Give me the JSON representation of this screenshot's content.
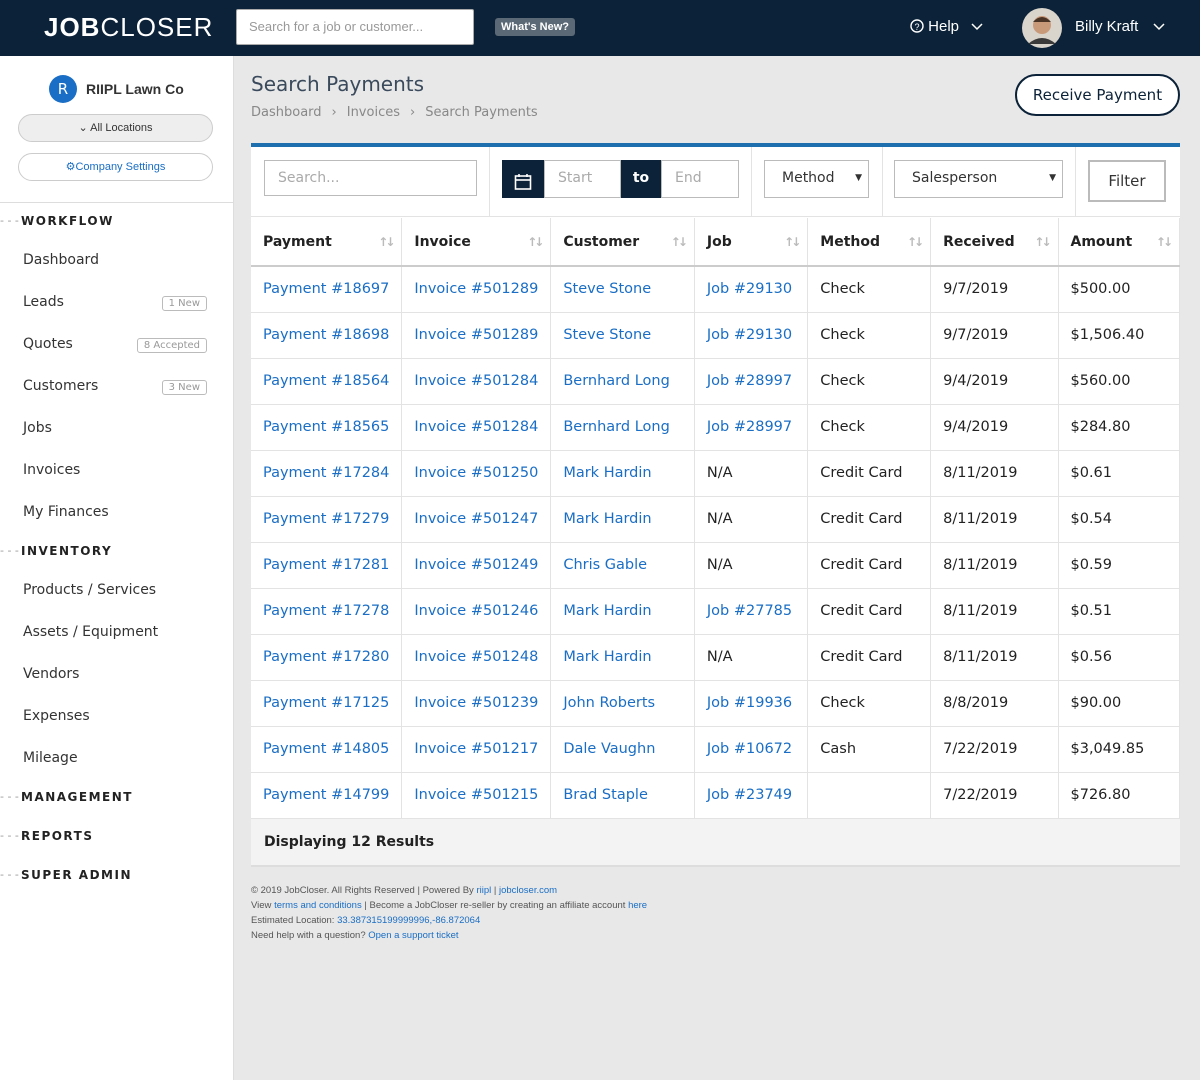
{
  "header": {
    "logo_bold": "JOB",
    "logo_light": "CLOSER",
    "search_placeholder": "Search for a job or customer...",
    "whats_new": "What's New?",
    "help": "Help",
    "user_name": "Billy Kraft"
  },
  "sidebar": {
    "company_initial": "R",
    "company_name": "RIIPL Lawn Co",
    "locations": "All Locations",
    "settings": "Company Settings",
    "sections": [
      {
        "title": "WORKFLOW",
        "items": [
          {
            "label": "Dashboard"
          },
          {
            "label": "Leads",
            "badge": "1 New"
          },
          {
            "label": "Quotes",
            "badge": "8 Accepted"
          },
          {
            "label": "Customers",
            "badge": "3 New"
          },
          {
            "label": "Jobs"
          },
          {
            "label": "Invoices"
          },
          {
            "label": "My Finances"
          }
        ]
      },
      {
        "title": "INVENTORY",
        "items": [
          {
            "label": "Products / Services"
          },
          {
            "label": "Assets / Equipment"
          },
          {
            "label": "Vendors"
          },
          {
            "label": "Expenses"
          },
          {
            "label": "Mileage"
          }
        ]
      },
      {
        "title": "MANAGEMENT",
        "items": []
      },
      {
        "title": "REPORTS",
        "items": []
      },
      {
        "title": "SUPER ADMIN",
        "items": []
      }
    ]
  },
  "page": {
    "title": "Search Payments",
    "breadcrumbs": [
      "Dashboard",
      "Invoices",
      "Search Payments"
    ],
    "receive_button": "Receive Payment"
  },
  "filters": {
    "search_placeholder": "Search...",
    "start": "Start",
    "to": "to",
    "end": "End",
    "method": "Method",
    "salesperson": "Salesperson",
    "filter_button": "Filter"
  },
  "table": {
    "columns": [
      {
        "label": "Payment",
        "link": true
      },
      {
        "label": "Invoice",
        "link": true
      },
      {
        "label": "Customer",
        "link": true
      },
      {
        "label": "Job",
        "link": true
      },
      {
        "label": "Method",
        "link": false
      },
      {
        "label": "Received",
        "link": false
      },
      {
        "label": "Amount",
        "link": false
      }
    ],
    "rows": [
      [
        "Payment #18697",
        "Invoice #501289",
        "Steve Stone",
        "Job #29130",
        "Check",
        "9/7/2019",
        "$500.00"
      ],
      [
        "Payment #18698",
        "Invoice #501289",
        "Steve Stone",
        "Job #29130",
        "Check",
        "9/7/2019",
        "$1,506.40"
      ],
      [
        "Payment #18564",
        "Invoice #501284",
        "Bernhard Long",
        "Job #28997",
        "Check",
        "9/4/2019",
        "$560.00"
      ],
      [
        "Payment #18565",
        "Invoice #501284",
        "Bernhard Long",
        "Job #28997",
        "Check",
        "9/4/2019",
        "$284.80"
      ],
      [
        "Payment #17284",
        "Invoice #501250",
        "Mark Hardin",
        {
          "text": "N/A",
          "link": false
        },
        "Credit Card",
        "8/11/2019",
        "$0.61"
      ],
      [
        "Payment #17279",
        "Invoice #501247",
        "Mark Hardin",
        {
          "text": "N/A",
          "link": false
        },
        "Credit Card",
        "8/11/2019",
        "$0.54"
      ],
      [
        "Payment #17281",
        "Invoice #501249",
        "Chris Gable",
        {
          "text": "N/A",
          "link": false
        },
        "Credit Card",
        "8/11/2019",
        "$0.59"
      ],
      [
        "Payment #17278",
        "Invoice #501246",
        "Mark Hardin",
        "Job #27785",
        "Credit Card",
        "8/11/2019",
        "$0.51"
      ],
      [
        "Payment #17280",
        "Invoice #501248",
        "Mark Hardin",
        {
          "text": "N/A",
          "link": false
        },
        "Credit Card",
        "8/11/2019",
        "$0.56"
      ],
      [
        "Payment #17125",
        "Invoice #501239",
        "John Roberts",
        "Job #19936",
        "Check",
        "8/8/2019",
        "$90.00"
      ],
      [
        "Payment #14805",
        "Invoice #501217",
        "Dale Vaughn",
        "Job #10672",
        "Cash",
        "7/22/2019",
        "$3,049.85"
      ],
      [
        "Payment #14799",
        "Invoice #501215",
        "Brad Staple",
        "Job #23749",
        null,
        "7/22/2019",
        "$726.80"
      ]
    ],
    "results": "Displaying 12 Results"
  },
  "footer": {
    "lines": [
      [
        {
          "text": "© 2019 JobCloser. All Rights Reserved | Powered By "
        },
        {
          "text": "riipl",
          "link": true
        },
        {
          "text": " | "
        },
        {
          "text": "jobcloser.com",
          "link": true
        }
      ],
      [
        {
          "text": "View "
        },
        {
          "text": "terms and conditions",
          "link": true
        },
        {
          "text": " | Become a JobCloser re-seller by creating an affiliate account "
        },
        {
          "text": "here",
          "link": true
        }
      ],
      [
        {
          "text": "Estimated Location: "
        },
        {
          "text": "33.387315199999996,-86.872064",
          "link": true
        }
      ],
      [
        {
          "text": "Need help with a question? "
        },
        {
          "text": "Open a support ticket",
          "link": true
        }
      ]
    ]
  }
}
